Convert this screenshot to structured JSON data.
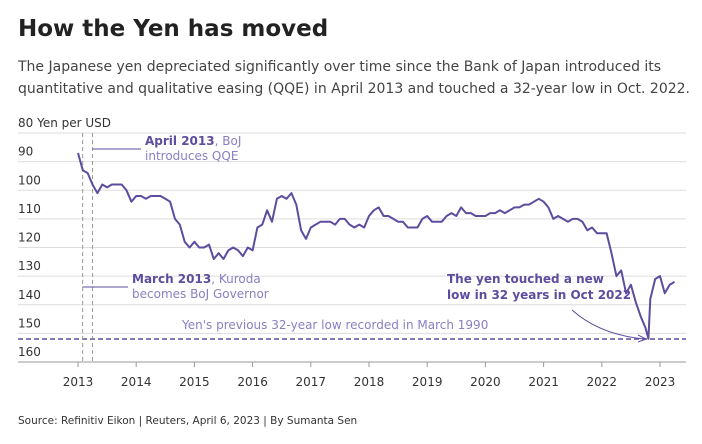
{
  "chart_data": {
    "type": "line",
    "title": "How the Yen has moved",
    "subtitle": [
      "The Japanese yen depreciated significantly over time since the Bank of Japan introduced its",
      "quantitative and qualitative easing (QQE) in April 2013 and touched a 32-year low in Oct. 2022."
    ],
    "source": "Source: Refinitiv Eikon | Reuters, April 6, 2023 | By Sumanta Sen",
    "x": [
      2013.0,
      2013.083,
      2013.167,
      2013.25,
      2013.333,
      2013.417,
      2013.5,
      2013.583,
      2013.667,
      2013.75,
      2013.833,
      2013.917,
      2014.0,
      2014.083,
      2014.167,
      2014.25,
      2014.333,
      2014.417,
      2014.5,
      2014.583,
      2014.667,
      2014.75,
      2014.833,
      2014.917,
      2015.0,
      2015.083,
      2015.167,
      2015.25,
      2015.333,
      2015.417,
      2015.5,
      2015.583,
      2015.667,
      2015.75,
      2015.833,
      2015.917,
      2016.0,
      2016.083,
      2016.167,
      2016.25,
      2016.333,
      2016.417,
      2016.5,
      2016.583,
      2016.667,
      2016.75,
      2016.833,
      2016.917,
      2017.0,
      2017.083,
      2017.167,
      2017.25,
      2017.333,
      2017.417,
      2017.5,
      2017.583,
      2017.667,
      2017.75,
      2017.833,
      2017.917,
      2018.0,
      2018.083,
      2018.167,
      2018.25,
      2018.333,
      2018.417,
      2018.5,
      2018.583,
      2018.667,
      2018.75,
      2018.833,
      2018.917,
      2019.0,
      2019.083,
      2019.167,
      2019.25,
      2019.333,
      2019.417,
      2019.5,
      2019.583,
      2019.667,
      2019.75,
      2019.833,
      2019.917,
      2020.0,
      2020.083,
      2020.167,
      2020.25,
      2020.333,
      2020.417,
      2020.5,
      2020.583,
      2020.667,
      2020.75,
      2020.833,
      2020.917,
      2021.0,
      2021.083,
      2021.167,
      2021.25,
      2021.333,
      2021.417,
      2021.5,
      2021.583,
      2021.667,
      2021.75,
      2021.833,
      2021.917,
      2022.0,
      2022.083,
      2022.167,
      2022.25,
      2022.333,
      2022.417,
      2022.5,
      2022.583,
      2022.667,
      2022.75,
      2022.8,
      2022.833,
      2022.917,
      2023.0,
      2023.083,
      2023.167,
      2023.25
    ],
    "series": [
      {
        "color": "#5e4c9e",
        "values": [
          87,
          93,
          94,
          98,
          101,
          98,
          99,
          98,
          98,
          98,
          100,
          104,
          102,
          102,
          103,
          102,
          102,
          102,
          103,
          104,
          110,
          112,
          118,
          120,
          118,
          120,
          120,
          119,
          124,
          122,
          124,
          121,
          120,
          121,
          123,
          120,
          121,
          113,
          112,
          107,
          111,
          103,
          102,
          103,
          101,
          105,
          114,
          117,
          113,
          112,
          111,
          111,
          111,
          112,
          110,
          110,
          112,
          113,
          112,
          113,
          109,
          107,
          106,
          109,
          109,
          110,
          111,
          111,
          113,
          113,
          113,
          110,
          109,
          111,
          111,
          111,
          109,
          108,
          109,
          106,
          108,
          108,
          109,
          109,
          109,
          108,
          108,
          107,
          108,
          107,
          106,
          106,
          105,
          105,
          104,
          103,
          104,
          106,
          110,
          109,
          110,
          111,
          110,
          110,
          111,
          114,
          113,
          115,
          115,
          115,
          122,
          130,
          128,
          136,
          133,
          139,
          144,
          148,
          151.9,
          138,
          131,
          130,
          136,
          133,
          132
        ]
      }
    ],
    "xlim": [
      2012.45,
      2023.7
    ],
    "xticks": [
      2013,
      2014,
      2015,
      2016,
      2017,
      2018,
      2019,
      2020,
      2021,
      2022,
      2023
    ],
    "ylim": [
      80,
      160
    ],
    "invert_y": true,
    "yticks": [
      {
        "value": 80,
        "label": "80 Yen per USD"
      },
      90,
      100,
      110,
      120,
      130,
      140,
      150,
      160
    ],
    "grid": true,
    "hline": {
      "y": 151.95,
      "label": "Yen's previous 32-year low recorded in March 1990"
    },
    "vlines": [
      {
        "x": 2013.25,
        "bold": "April 2013",
        "text": [
          ", BoJ",
          "introduces QQE"
        ]
      },
      {
        "x": 2013.08,
        "bold": "March 2013",
        "text": [
          ", Kuroda",
          "becomes BoJ Governor"
        ]
      }
    ],
    "callout": [
      "The yen touched a new",
      "low in 32 years in Oct 2022"
    ]
  }
}
